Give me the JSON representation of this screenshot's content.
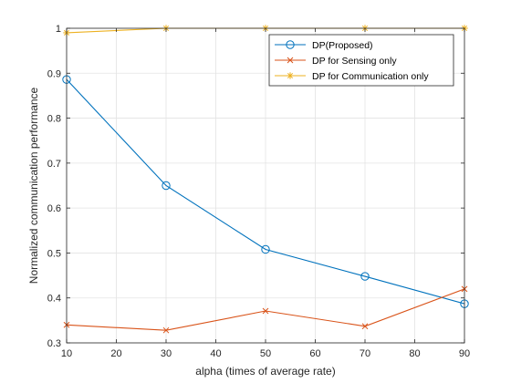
{
  "chart_data": {
    "type": "line",
    "title": "",
    "xlabel": "alpha (times of average rate)",
    "ylabel": "Normalized communication performance",
    "xlim": [
      10,
      90
    ],
    "ylim": [
      0.3,
      1
    ],
    "xticks": [
      "10",
      "20",
      "30",
      "40",
      "50",
      "60",
      "70",
      "80",
      "90"
    ],
    "yticks": [
      "0.3",
      "0.4",
      "0.5",
      "0.6",
      "0.7",
      "0.8",
      "0.9",
      "1"
    ],
    "grid": true,
    "legend_position": "top-right",
    "x": [
      10,
      30,
      50,
      70,
      90
    ],
    "series": [
      {
        "name": "DP(Proposed)",
        "color": "#0072BD",
        "marker": "circle",
        "values": [
          0.886,
          0.65,
          0.508,
          0.448,
          0.387
        ]
      },
      {
        "name": "DP for Sensing only",
        "color": "#D95319",
        "marker": "x",
        "values": [
          0.34,
          0.328,
          0.371,
          0.337,
          0.42
        ]
      },
      {
        "name": "DP for Communication only",
        "color": "#EDB120",
        "marker": "star",
        "values": [
          0.99,
          1.0,
          1.0,
          1.0,
          1.0
        ]
      }
    ]
  }
}
